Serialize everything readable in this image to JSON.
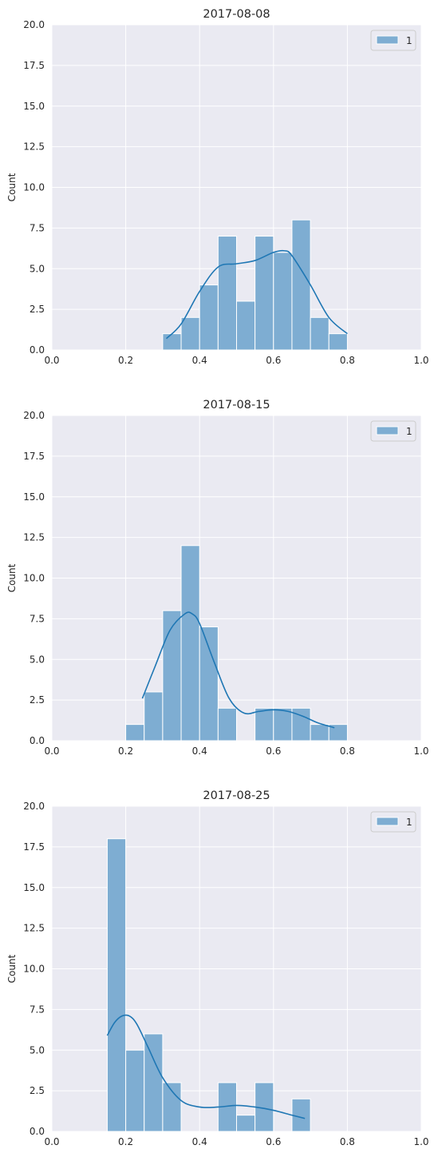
{
  "figure": {
    "background": "#ffffff",
    "panel_color": "#eaeaf2",
    "grid_color": "#ffffff",
    "bar_color": "#7eadd2",
    "bar_edge": "#ffffff",
    "line_color": "#1f77b4"
  },
  "chart_data": [
    {
      "type": "bar",
      "title": "2017-08-08",
      "xlabel": "",
      "ylabel": "Count",
      "xlim": [
        0.0,
        1.0
      ],
      "ylim": [
        0,
        20
      ],
      "xticks": [
        "0.0",
        "0.2",
        "0.4",
        "0.6",
        "0.8",
        "1.0"
      ],
      "yticks": [
        "0.0",
        "2.5",
        "5.0",
        "7.5",
        "10.0",
        "12.5",
        "15.0",
        "17.5",
        "20.0"
      ],
      "grid": true,
      "legend": {
        "position": "top-right",
        "entries": [
          "1"
        ]
      },
      "bin_width": 0.05,
      "bins": [
        {
          "x0": 0.3,
          "count": 1
        },
        {
          "x0": 0.35,
          "count": 2
        },
        {
          "x0": 0.4,
          "count": 4
        },
        {
          "x0": 0.45,
          "count": 7
        },
        {
          "x0": 0.5,
          "count": 3
        },
        {
          "x0": 0.55,
          "count": 7
        },
        {
          "x0": 0.6,
          "count": 6
        },
        {
          "x0": 0.65,
          "count": 8
        },
        {
          "x0": 0.7,
          "count": 2
        },
        {
          "x0": 0.75,
          "count": 1
        }
      ],
      "kde": {
        "x": [
          0.31,
          0.35,
          0.4,
          0.45,
          0.5,
          0.55,
          0.6,
          0.63,
          0.65,
          0.7,
          0.75,
          0.8
        ],
        "y": [
          0.7,
          1.6,
          3.6,
          5.1,
          5.3,
          5.5,
          6.0,
          6.1,
          5.8,
          4.0,
          2.0,
          1.0
        ]
      }
    },
    {
      "type": "bar",
      "title": "2017-08-15",
      "xlabel": "",
      "ylabel": "Count",
      "xlim": [
        0.0,
        1.0
      ],
      "ylim": [
        0,
        20
      ],
      "xticks": [
        "0.0",
        "0.2",
        "0.4",
        "0.6",
        "0.8",
        "1.0"
      ],
      "yticks": [
        "0.0",
        "2.5",
        "5.0",
        "7.5",
        "10.0",
        "12.5",
        "15.0",
        "17.5",
        "20.0"
      ],
      "grid": true,
      "legend": {
        "position": "top-right",
        "entries": [
          "1"
        ]
      },
      "bin_width": 0.05,
      "bins": [
        {
          "x0": 0.2,
          "count": 1
        },
        {
          "x0": 0.25,
          "count": 3
        },
        {
          "x0": 0.3,
          "count": 8
        },
        {
          "x0": 0.35,
          "count": 12
        },
        {
          "x0": 0.4,
          "count": 7
        },
        {
          "x0": 0.45,
          "count": 2
        },
        {
          "x0": 0.5,
          "count": 0
        },
        {
          "x0": 0.55,
          "count": 2
        },
        {
          "x0": 0.6,
          "count": 2
        },
        {
          "x0": 0.65,
          "count": 2
        },
        {
          "x0": 0.7,
          "count": 1
        },
        {
          "x0": 0.75,
          "count": 1
        }
      ],
      "kde": {
        "x": [
          0.245,
          0.28,
          0.32,
          0.36,
          0.38,
          0.4,
          0.44,
          0.48,
          0.52,
          0.56,
          0.6,
          0.64,
          0.68,
          0.72,
          0.765
        ],
        "y": [
          2.6,
          4.6,
          6.8,
          7.8,
          7.8,
          7.2,
          4.8,
          2.6,
          1.7,
          1.8,
          1.9,
          1.8,
          1.5,
          1.1,
          0.8
        ]
      }
    },
    {
      "type": "bar",
      "title": "2017-08-25",
      "xlabel": "",
      "ylabel": "Count",
      "xlim": [
        0.0,
        1.0
      ],
      "ylim": [
        0,
        20
      ],
      "xticks": [
        "0.0",
        "0.2",
        "0.4",
        "0.6",
        "0.8",
        "1.0"
      ],
      "yticks": [
        "0.0",
        "2.5",
        "5.0",
        "7.5",
        "10.0",
        "12.5",
        "15.0",
        "17.5",
        "20.0"
      ],
      "grid": true,
      "legend": {
        "position": "top-right",
        "entries": [
          "1"
        ]
      },
      "bin_width": 0.05,
      "bins": [
        {
          "x0": 0.15,
          "count": 18
        },
        {
          "x0": 0.2,
          "count": 5
        },
        {
          "x0": 0.25,
          "count": 6
        },
        {
          "x0": 0.3,
          "count": 3
        },
        {
          "x0": 0.35,
          "count": 0
        },
        {
          "x0": 0.4,
          "count": 0
        },
        {
          "x0": 0.45,
          "count": 3
        },
        {
          "x0": 0.5,
          "count": 1
        },
        {
          "x0": 0.55,
          "count": 3
        },
        {
          "x0": 0.6,
          "count": 0
        },
        {
          "x0": 0.65,
          "count": 2
        }
      ],
      "kde": {
        "x": [
          0.15,
          0.17,
          0.19,
          0.21,
          0.23,
          0.26,
          0.3,
          0.35,
          0.4,
          0.45,
          0.5,
          0.55,
          0.6,
          0.65,
          0.685
        ],
        "y": [
          5.9,
          6.7,
          7.1,
          7.1,
          6.6,
          5.2,
          3.3,
          1.9,
          1.5,
          1.5,
          1.6,
          1.5,
          1.3,
          1.0,
          0.8
        ]
      }
    }
  ]
}
